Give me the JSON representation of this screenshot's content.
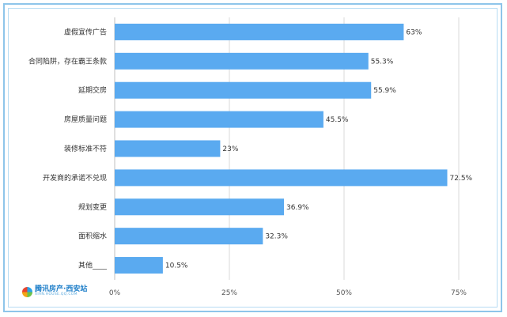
{
  "chart_data": {
    "type": "bar",
    "orientation": "horizontal",
    "categories": [
      "虚假宣传广告",
      "合同陷阱，存在霸王条款",
      "延期交房",
      "房屋质量问题",
      "装修标准不符",
      "开发商的承诺不兑现",
      "规划变更",
      "面积缩水",
      "其他____"
    ],
    "values": [
      63,
      55.3,
      55.9,
      45.5,
      23,
      72.5,
      36.9,
      32.3,
      10.5
    ],
    "value_labels": [
      "63%",
      "55.3%",
      "55.9%",
      "45.5%",
      "23%",
      "72.5%",
      "36.9%",
      "32.3%",
      "10.5%"
    ],
    "xlim": [
      0,
      75
    ],
    "xticks": [
      0,
      25,
      50,
      75
    ],
    "xtick_labels": [
      "0%",
      "25%",
      "50%",
      "75%"
    ],
    "grid": true,
    "bar_color": "#5aaaf0",
    "grid_color": "#d9d9d9"
  },
  "logo": {
    "main": "腾讯房产·西安站",
    "sub": "XIAN.HOUSE.QQ.COM"
  }
}
